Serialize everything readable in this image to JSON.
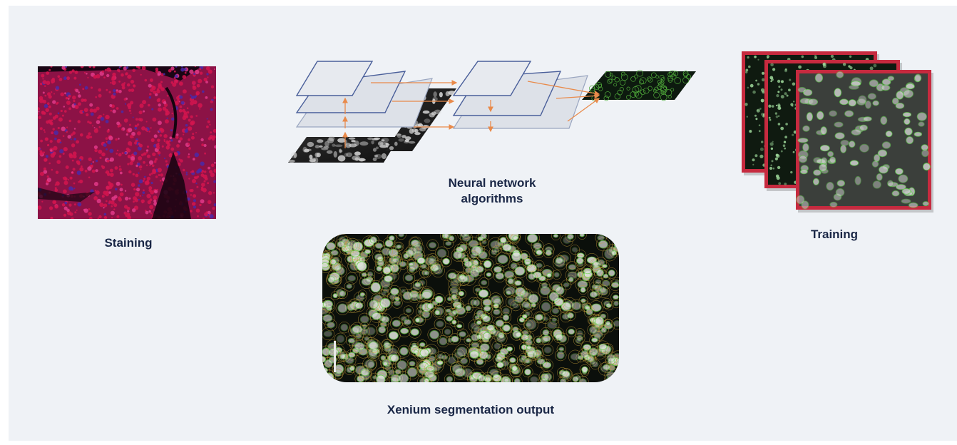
{
  "labels": {
    "staining": "Staining",
    "neural_line1": "Neural network",
    "neural_line2": "algorithms",
    "training": "Training",
    "segmentation": "Xenium segmentation output"
  },
  "colors": {
    "background": "#eff2f6",
    "label_text": "#1a2746",
    "stain_red": "#d4154f",
    "stain_blue": "#4a2aa8",
    "layer_border": "#4a5f9a",
    "layer_fill": "#dde1e8",
    "arrow": "#e98a4a",
    "cell_outline_green": "#6fd24a",
    "cell_outline_orange": "#c8a23a",
    "training_frame": "#c62a3f"
  },
  "icons": {
    "staining_image": "fluorescence-stained-tissue-image",
    "network_diagram": "neural-network-layers-diagram",
    "training_stack": "stacked-training-images",
    "segmentation_image": "segmented-cell-image"
  }
}
